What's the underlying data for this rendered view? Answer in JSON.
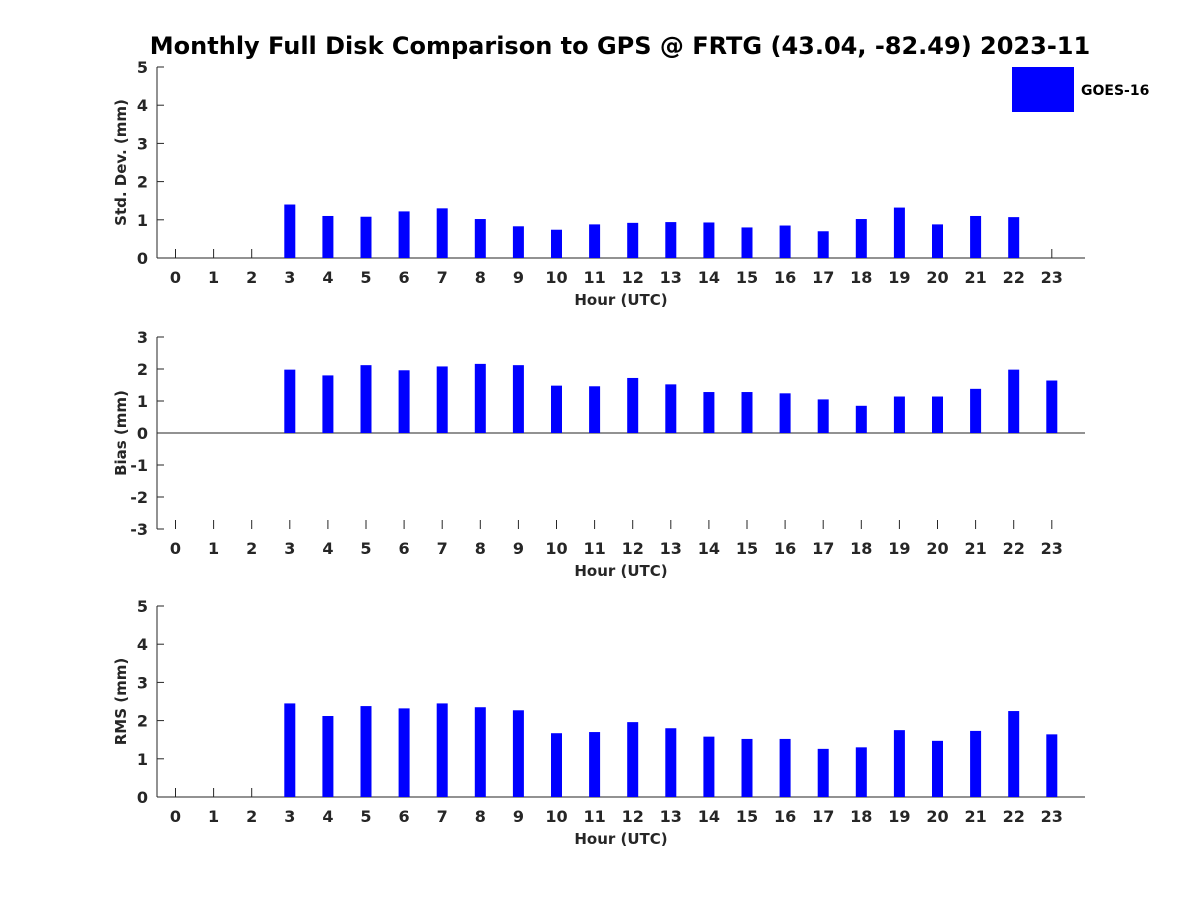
{
  "title": "Monthly Full Disk Comparison to GPS @ FRTG (43.04, -82.49) 2023-11",
  "legend": {
    "label": "GOES-16",
    "placement": "top-right"
  },
  "colors": {
    "bar": "#0000ff",
    "axis": "#262626",
    "text": "#262626"
  },
  "chart_data": [
    {
      "type": "bar",
      "ylabel": "Std. Dev. (mm)",
      "xlabel": "Hour (UTC)",
      "ylim": [
        0,
        5
      ],
      "yticks": [
        0,
        1,
        2,
        3,
        4,
        5
      ],
      "categories": [
        0,
        1,
        2,
        3,
        4,
        5,
        6,
        7,
        8,
        9,
        10,
        11,
        12,
        13,
        14,
        15,
        16,
        17,
        18,
        19,
        20,
        21,
        22,
        23
      ],
      "series": [
        {
          "name": "GOES-16",
          "values": [
            null,
            null,
            null,
            1.4,
            1.1,
            1.08,
            1.22,
            1.3,
            1.02,
            0.83,
            0.74,
            0.88,
            0.92,
            0.94,
            0.93,
            0.8,
            0.85,
            0.7,
            1.02,
            1.32,
            0.88,
            1.1,
            1.07,
            null
          ]
        }
      ],
      "grid": false
    },
    {
      "type": "bar",
      "ylabel": "Bias (mm)",
      "xlabel": "Hour (UTC)",
      "ylim": [
        -3,
        3
      ],
      "yticks": [
        -3,
        -2,
        -1,
        0,
        1,
        2,
        3
      ],
      "categories": [
        0,
        1,
        2,
        3,
        4,
        5,
        6,
        7,
        8,
        9,
        10,
        11,
        12,
        13,
        14,
        15,
        16,
        17,
        18,
        19,
        20,
        21,
        22,
        23
      ],
      "series": [
        {
          "name": "GOES-16",
          "values": [
            null,
            null,
            null,
            1.98,
            1.8,
            2.12,
            1.96,
            2.08,
            2.16,
            2.12,
            1.48,
            1.46,
            1.72,
            1.52,
            1.28,
            1.28,
            1.24,
            1.05,
            0.85,
            1.14,
            1.14,
            1.38,
            1.98,
            1.64
          ]
        }
      ],
      "grid": false
    },
    {
      "type": "bar",
      "ylabel": "RMS (mm)",
      "xlabel": "Hour (UTC)",
      "ylim": [
        0,
        5
      ],
      "yticks": [
        0,
        1,
        2,
        3,
        4,
        5
      ],
      "categories": [
        0,
        1,
        2,
        3,
        4,
        5,
        6,
        7,
        8,
        9,
        10,
        11,
        12,
        13,
        14,
        15,
        16,
        17,
        18,
        19,
        20,
        21,
        22,
        23
      ],
      "series": [
        {
          "name": "GOES-16",
          "values": [
            null,
            null,
            null,
            2.45,
            2.12,
            2.38,
            2.32,
            2.45,
            2.35,
            2.27,
            1.67,
            1.7,
            1.96,
            1.8,
            1.58,
            1.52,
            1.52,
            1.26,
            1.3,
            1.75,
            1.47,
            1.73,
            2.25,
            1.64
          ]
        }
      ],
      "grid": false
    }
  ]
}
